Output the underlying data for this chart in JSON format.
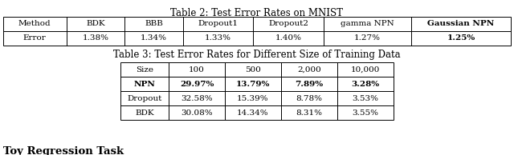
{
  "table2_title": "Table 2: Test Error Rates on MNIST",
  "table2_headers": [
    "Method",
    "BDK",
    "BBB",
    "Dropout1",
    "Dropout2",
    "gamma NPN",
    "Gaussian NPN"
  ],
  "table2_row": [
    "Error",
    "1.38%",
    "1.34%",
    "1.33%",
    "1.40%",
    "1.27%",
    "1.25%"
  ],
  "table3_title": "Table 3: Test Error Rates for Different Size of Training Data",
  "table3_headers": [
    "Size",
    "100",
    "500",
    "2,000",
    "10,000"
  ],
  "table3_rows": [
    [
      "NPN",
      "29.97%",
      "13.79%",
      "7.89%",
      "3.28%"
    ],
    [
      "Dropout",
      "32.58%",
      "15.39%",
      "8.78%",
      "3.53%"
    ],
    [
      "BDK",
      "30.08%",
      "14.34%",
      "8.31%",
      "3.55%"
    ]
  ],
  "footer_text": "Toy Regression Task",
  "bg_color": "#ffffff",
  "text_color": "#000000",
  "font_size": 7.5,
  "title_font_size": 8.5,
  "footer_font_size": 9.5,
  "lw": 0.7
}
